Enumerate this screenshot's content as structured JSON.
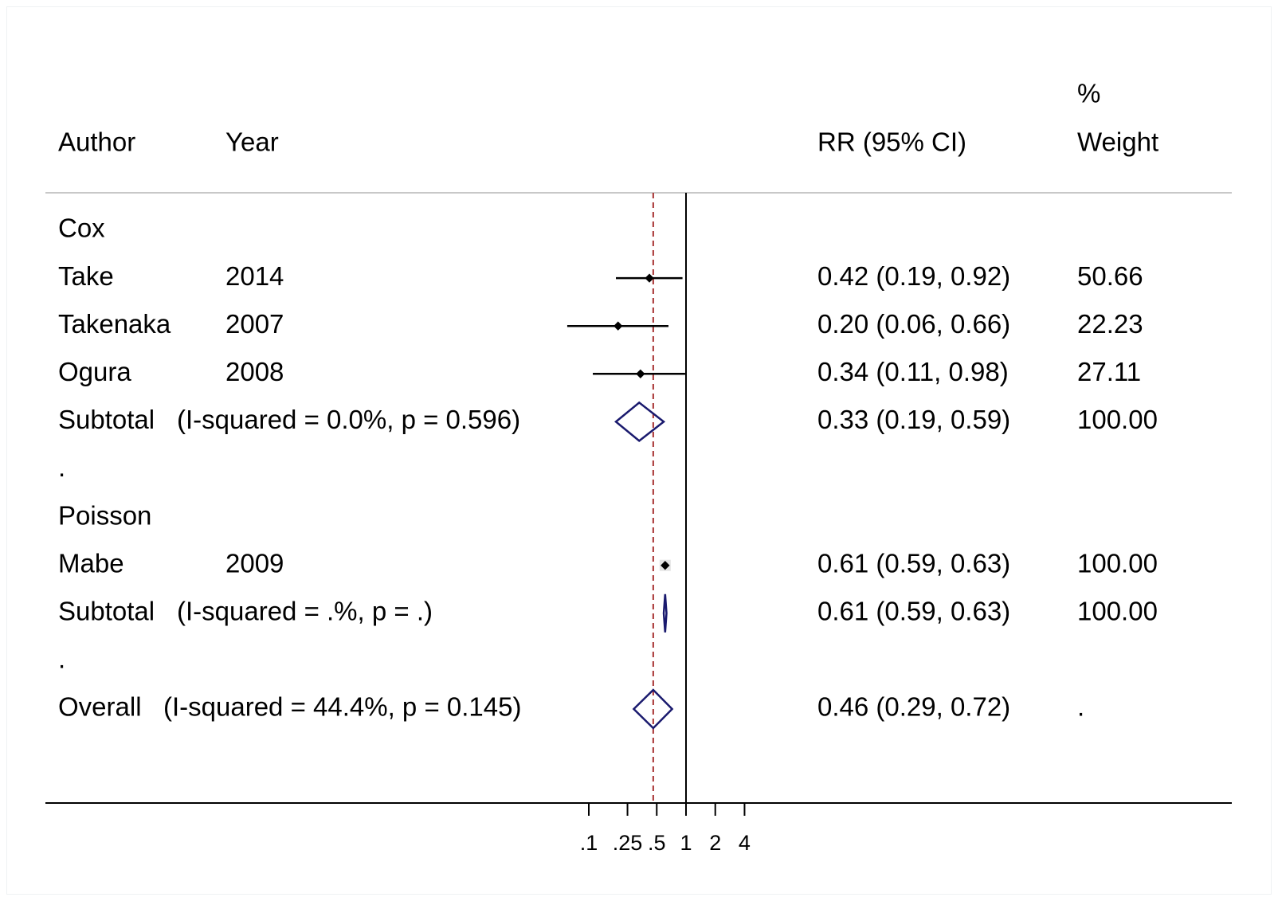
{
  "chart_data": {
    "type": "forest",
    "header": {
      "author": "Author",
      "year": "Year",
      "effect": "RR (95% CI)",
      "weight_top": "%",
      "weight_bottom": "Weight"
    },
    "rows": [
      {
        "kind": "group",
        "label": "Cox"
      },
      {
        "kind": "study",
        "author": "Take",
        "year": "2014",
        "rr": 0.42,
        "lo": 0.19,
        "hi": 0.92,
        "ci_text": "0.42 (0.19, 0.92)",
        "weight": "50.66"
      },
      {
        "kind": "study",
        "author": "Takenaka",
        "year": "2007",
        "rr": 0.2,
        "lo": 0.06,
        "hi": 0.66,
        "ci_text": "0.20 (0.06, 0.66)",
        "weight": "22.23"
      },
      {
        "kind": "study",
        "author": "Ogura",
        "year": "2008",
        "rr": 0.34,
        "lo": 0.11,
        "hi": 0.98,
        "ci_text": "0.34 (0.11, 0.98)",
        "weight": "27.11"
      },
      {
        "kind": "subtotal",
        "label": "Subtotal",
        "stat": "(I-squared = 0.0%, p = 0.596)",
        "rr": 0.33,
        "lo": 0.19,
        "hi": 0.59,
        "ci_text": "0.33 (0.19, 0.59)",
        "weight": "100.00"
      },
      {
        "kind": "dot",
        "label": "."
      },
      {
        "kind": "group",
        "label": "Poisson"
      },
      {
        "kind": "study",
        "author": "Mabe",
        "year": "2009",
        "rr": 0.61,
        "lo": 0.59,
        "hi": 0.63,
        "ci_text": "0.61 (0.59, 0.63)",
        "weight": "100.00"
      },
      {
        "kind": "subtotal",
        "label": "Subtotal",
        "stat": "(I-squared = .%, p = .)",
        "rr": 0.61,
        "lo": 0.59,
        "hi": 0.63,
        "ci_text": "0.61 (0.59, 0.63)",
        "weight": "100.00"
      },
      {
        "kind": "dot",
        "label": "."
      },
      {
        "kind": "overall",
        "label": "Overall",
        "stat": "(I-squared = 44.4%, p = 0.145)",
        "rr": 0.46,
        "lo": 0.29,
        "hi": 0.72,
        "ci_text": "0.46 (0.29, 0.72)",
        "weight": "."
      }
    ],
    "x_axis": {
      "scale": "log",
      "ticks": [
        0.1,
        0.25,
        0.5,
        1,
        2,
        4
      ],
      "tick_labels": [
        ".1",
        ".25",
        ".5",
        "1",
        "2",
        "4"
      ]
    },
    "null_line": 1,
    "overall_line": 0.46,
    "colors": {
      "diamond": "#1a1a6e",
      "overall_line": "#a83232",
      "text": "#000000",
      "separator": "#c8c8c8"
    }
  }
}
